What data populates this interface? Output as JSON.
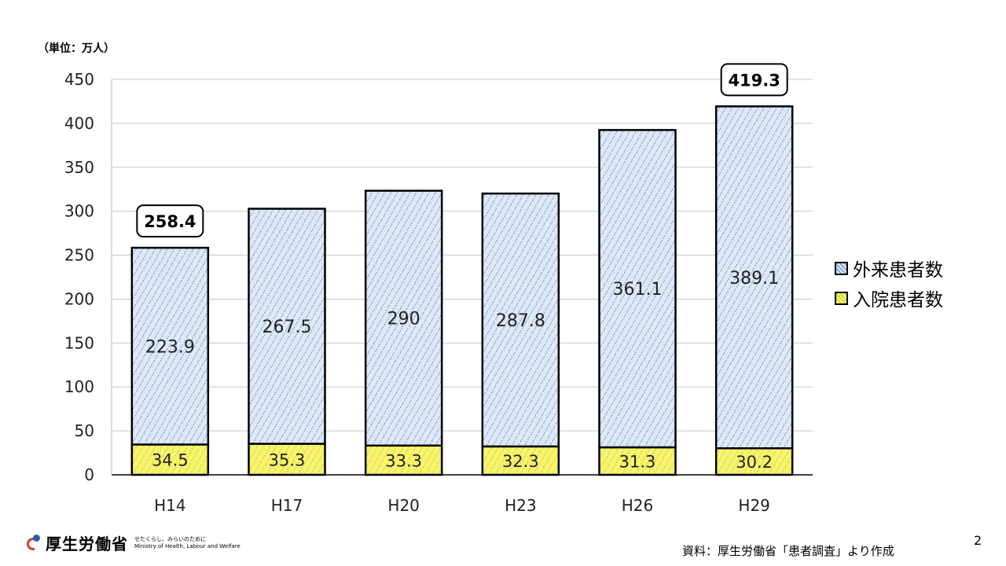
{
  "unit_label": "（単位：万人）",
  "chart_data": {
    "type": "bar",
    "stacked": true,
    "categories": [
      "H14",
      "H17",
      "H20",
      "H23",
      "H26",
      "H29"
    ],
    "series": [
      {
        "name": "入院患者数",
        "values": [
          34.5,
          35.3,
          33.3,
          32.3,
          31.3,
          30.2
        ],
        "color": "#f5f26a"
      },
      {
        "name": "外来患者数",
        "values": [
          223.9,
          267.5,
          290,
          287.8,
          361.1,
          389.1
        ],
        "color": "#c9d8ee"
      }
    ],
    "data_labels": {
      "入院患者数": [
        "34.5",
        "35.3",
        "33.3",
        "32.3",
        "31.3",
        "30.2"
      ],
      "外来患者数": [
        "223.9",
        "267.5",
        "290",
        "287.8",
        "361.1",
        "389.1"
      ]
    },
    "total_callouts": [
      {
        "category": "H14",
        "value": 258.4,
        "label": "258.4"
      },
      {
        "category": "H29",
        "value": 419.3,
        "label": "419.3"
      }
    ],
    "yticks": [
      0,
      50,
      100,
      150,
      200,
      250,
      300,
      350,
      400,
      450
    ],
    "ylim": [
      0,
      450
    ],
    "grid": true,
    "legend": {
      "position": "right",
      "order": [
        "外来患者数",
        "入院患者数"
      ]
    }
  },
  "footer": {
    "ministry_name": "厚生労働省",
    "ministry_tagline": "せたくらし、みらいのために",
    "ministry_english": "Ministry of Health, Labour and Welfare",
    "source": "資料：厚生労働省「患者調査」より作成",
    "page_number": "2"
  }
}
